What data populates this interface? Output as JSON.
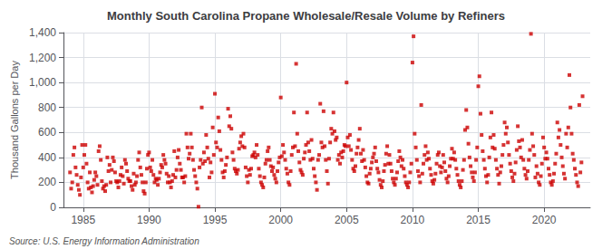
{
  "chart_data": {
    "type": "scatter",
    "title": "Monthly South Carolina Propane Wholesale/Resale Volume by Refiners",
    "ylabel": "Thousand Gallons per Day",
    "annotations": [
      "Source: U.S. Energy Information Administration"
    ],
    "color": "#cc0000",
    "marker": "square",
    "grid": true,
    "xlim": [
      1983.5,
      2023.5
    ],
    "xticks": [
      1985,
      1990,
      1995,
      2000,
      2005,
      2010,
      2015,
      2020
    ],
    "ylim": [
      0,
      1400
    ],
    "yticks": [
      0,
      200,
      400,
      600,
      800,
      {
        "value": 1000,
        "label": "1,000"
      },
      {
        "value": 1200,
        "label": "1,200"
      },
      {
        "value": 1400,
        "label": "1,400"
      }
    ],
    "x": [
      1984.0,
      1984.083,
      1984.167,
      1984.25,
      1984.333,
      1984.417,
      1984.5,
      1984.583,
      1984.667,
      1984.75,
      1984.833,
      1984.917,
      1985.0,
      1985.083,
      1985.167,
      1985.25,
      1985.333,
      1985.417,
      1985.5,
      1985.583,
      1985.667,
      1985.75,
      1985.833,
      1985.917,
      1986.0,
      1986.083,
      1986.167,
      1986.25,
      1986.333,
      1986.417,
      1986.5,
      1986.583,
      1986.667,
      1986.75,
      1986.833,
      1986.917,
      1987.0,
      1987.083,
      1987.167,
      1987.25,
      1987.333,
      1987.417,
      1987.5,
      1987.583,
      1987.667,
      1987.75,
      1987.833,
      1987.917,
      1988.0,
      1988.083,
      1988.167,
      1988.25,
      1988.333,
      1988.417,
      1988.5,
      1988.583,
      1988.667,
      1988.75,
      1988.833,
      1988.917,
      1989.0,
      1989.083,
      1989.167,
      1989.25,
      1989.333,
      1989.417,
      1989.5,
      1989.583,
      1989.667,
      1989.75,
      1989.833,
      1989.917,
      1990.0,
      1990.083,
      1990.167,
      1990.25,
      1990.333,
      1990.417,
      1990.5,
      1990.583,
      1990.667,
      1990.75,
      1990.833,
      1990.917,
      1991.0,
      1991.083,
      1991.167,
      1991.25,
      1991.333,
      1991.417,
      1991.5,
      1991.583,
      1991.667,
      1991.75,
      1991.833,
      1991.917,
      1992.0,
      1992.083,
      1992.167,
      1992.25,
      1992.333,
      1992.417,
      1992.5,
      1992.583,
      1992.667,
      1992.75,
      1992.833,
      1992.917,
      1993.0,
      1993.083,
      1993.167,
      1993.25,
      1993.333,
      1993.417,
      1993.5,
      1993.583,
      1993.667,
      1993.75,
      1993.833,
      1993.917,
      1994.0,
      1994.083,
      1994.167,
      1994.25,
      1994.333,
      1994.417,
      1994.5,
      1994.583,
      1994.667,
      1994.75,
      1994.833,
      1994.917,
      1995.0,
      1995.083,
      1995.167,
      1995.25,
      1995.333,
      1995.417,
      1995.5,
      1995.583,
      1995.667,
      1995.75,
      1995.833,
      1995.917,
      1996.0,
      1996.083,
      1996.167,
      1996.25,
      1996.333,
      1996.417,
      1996.5,
      1996.583,
      1996.667,
      1996.75,
      1996.833,
      1996.917,
      1997.0,
      1997.083,
      1997.167,
      1997.25,
      1997.333,
      1997.417,
      1997.5,
      1997.583,
      1997.667,
      1997.75,
      1997.833,
      1997.917,
      1998.0,
      1998.083,
      1998.167,
      1998.25,
      1998.333,
      1998.417,
      1998.5,
      1998.583,
      1998.667,
      1998.75,
      1998.833,
      1998.917,
      1999.0,
      1999.083,
      1999.167,
      1999.25,
      1999.333,
      1999.417,
      1999.5,
      1999.583,
      1999.667,
      1999.75,
      1999.833,
      1999.917,
      2000.0,
      2000.083,
      2000.167,
      2000.25,
      2000.333,
      2000.417,
      2000.5,
      2000.583,
      2000.667,
      2000.75,
      2000.833,
      2000.917,
      2001.0,
      2001.083,
      2001.167,
      2001.25,
      2001.333,
      2001.417,
      2001.5,
      2001.583,
      2001.667,
      2001.75,
      2001.833,
      2001.917,
      2002.0,
      2002.083,
      2002.167,
      2002.25,
      2002.333,
      2002.417,
      2002.5,
      2002.583,
      2002.667,
      2002.75,
      2002.833,
      2002.917,
      2003.0,
      2003.083,
      2003.167,
      2003.25,
      2003.333,
      2003.417,
      2003.5,
      2003.583,
      2003.667,
      2003.75,
      2003.833,
      2003.917,
      2004.0,
      2004.083,
      2004.167,
      2004.25,
      2004.333,
      2004.417,
      2004.5,
      2004.583,
      2004.667,
      2004.75,
      2004.833,
      2004.917,
      2005.0,
      2005.083,
      2005.167,
      2005.25,
      2005.333,
      2005.417,
      2005.5,
      2005.583,
      2005.667,
      2005.75,
      2005.833,
      2005.917,
      2006.0,
      2006.083,
      2006.167,
      2006.25,
      2006.333,
      2006.417,
      2006.5,
      2006.583,
      2006.667,
      2006.75,
      2006.833,
      2006.917,
      2007.0,
      2007.083,
      2007.167,
      2007.25,
      2007.333,
      2007.417,
      2007.5,
      2007.583,
      2007.667,
      2007.75,
      2007.833,
      2007.917,
      2008.0,
      2008.083,
      2008.167,
      2008.25,
      2008.333,
      2008.417,
      2008.5,
      2008.583,
      2008.667,
      2008.75,
      2008.833,
      2008.917,
      2009.0,
      2009.083,
      2009.167,
      2009.25,
      2009.333,
      2009.417,
      2009.5,
      2009.583,
      2009.667,
      2009.75,
      2009.833,
      2009.917,
      2010.0,
      2010.083,
      2010.167,
      2010.25,
      2010.333,
      2010.417,
      2010.5,
      2010.583,
      2010.667,
      2010.75,
      2010.833,
      2010.917,
      2011.0,
      2011.083,
      2011.167,
      2011.25,
      2011.333,
      2011.417,
      2011.5,
      2011.583,
      2011.667,
      2011.75,
      2011.833,
      2011.917,
      2012.0,
      2012.083,
      2012.167,
      2012.25,
      2012.333,
      2012.417,
      2012.5,
      2012.583,
      2012.667,
      2012.75,
      2012.833,
      2012.917,
      2013.0,
      2013.083,
      2013.167,
      2013.25,
      2013.333,
      2013.417,
      2013.5,
      2013.583,
      2013.667,
      2013.75,
      2013.833,
      2013.917,
      2014.0,
      2014.083,
      2014.167,
      2014.25,
      2014.333,
      2014.417,
      2014.5,
      2014.583,
      2014.667,
      2014.75,
      2014.833,
      2014.917,
      2015.0,
      2015.083,
      2015.167,
      2015.25,
      2015.333,
      2015.417,
      2015.5,
      2015.583,
      2015.667,
      2015.75,
      2015.833,
      2015.917,
      2016.0,
      2016.083,
      2016.167,
      2016.25,
      2016.333,
      2016.417,
      2016.5,
      2016.583,
      2016.667,
      2016.75,
      2016.833,
      2016.917,
      2017.0,
      2017.083,
      2017.167,
      2017.25,
      2017.333,
      2017.417,
      2017.5,
      2017.583,
      2017.667,
      2017.75,
      2017.833,
      2017.917,
      2018.0,
      2018.083,
      2018.167,
      2018.25,
      2018.333,
      2018.417,
      2018.5,
      2018.583,
      2018.667,
      2018.75,
      2018.833,
      2018.917,
      2019.0,
      2019.083,
      2019.167,
      2019.25,
      2019.333,
      2019.417,
      2019.5,
      2019.583,
      2019.667,
      2019.75,
      2019.833,
      2019.917,
      2020.0,
      2020.083,
      2020.167,
      2020.25,
      2020.333,
      2020.417,
      2020.5,
      2020.583,
      2020.667,
      2020.75,
      2020.833,
      2020.917,
      2021.0,
      2021.083,
      2021.167,
      2021.25,
      2021.333,
      2021.417,
      2021.5,
      2021.583,
      2021.667,
      2021.75,
      2021.833,
      2021.917,
      2022.0,
      2022.083,
      2022.167,
      2022.25,
      2022.333,
      2022.417,
      2022.5,
      2022.583,
      2022.667,
      2022.75,
      2022.833,
      2022.917
    ],
    "values": [
      280,
      150,
      200,
      420,
      480,
      320,
      260,
      180,
      140,
      100,
      240,
      500,
      320,
      420,
      500,
      350,
      200,
      150,
      280,
      160,
      120,
      170,
      220,
      280,
      250,
      180,
      450,
      490,
      380,
      210,
      150,
      170,
      130,
      180,
      400,
      290,
      340,
      200,
      300,
      400,
      370,
      280,
      210,
      200,
      160,
      210,
      260,
      320,
      250,
      190,
      380,
      350,
      290,
      230,
      210,
      210,
      170,
      140,
      270,
      180,
      200,
      250,
      380,
      440,
      320,
      260,
      200,
      130,
      110,
      200,
      310,
      420,
      440,
      320,
      290,
      380,
      260,
      200,
      230,
      220,
      180,
      230,
      280,
      340,
      320,
      420,
      380,
      350,
      270,
      200,
      250,
      200,
      160,
      210,
      260,
      450,
      240,
      300,
      400,
      460,
      350,
      300,
      240,
      240,
      200,
      250,
      590,
      480,
      390,
      430,
      590,
      480,
      380,
      300,
      250,
      200,
      150,
      5,
      320,
      380,
      800,
      350,
      440,
      370,
      580,
      480,
      390,
      240,
      360,
      280,
      640,
      420,
      910,
      520,
      480,
      720,
      610,
      460,
      380,
      280,
      240,
      290,
      340,
      400,
      790,
      650,
      730,
      630,
      440,
      380,
      310,
      290,
      270,
      300,
      470,
      520,
      570,
      490,
      590,
      480,
      320,
      250,
      200,
      300,
      260,
      310,
      410,
      420,
      440,
      400,
      500,
      420,
      310,
      250,
      200,
      180,
      160,
      240,
      350,
      380,
      450,
      480,
      380,
      330,
      290,
      320,
      260,
      230,
      200,
      290,
      360,
      400,
      880,
      410,
      500,
      440,
      380,
      310,
      270,
      200,
      180,
      290,
      420,
      480,
      760,
      490,
      1150,
      590,
      450,
      360,
      300,
      280,
      260,
      390,
      440,
      500,
      760,
      520,
      450,
      380,
      540,
      390,
      310,
      250,
      200,
      140,
      380,
      420,
      830,
      520,
      480,
      770,
      490,
      380,
      290,
      190,
      390,
      520,
      630,
      590,
      760,
      610,
      540,
      560,
      380,
      420,
      350,
      440,
      400,
      450,
      500,
      490,
      1000,
      560,
      490,
      580,
      460,
      380,
      310,
      290,
      330,
      430,
      480,
      540,
      630,
      430,
      370,
      460,
      380,
      320,
      250,
      200,
      190,
      270,
      310,
      360,
      400,
      430,
      480,
      370,
      310,
      280,
      220,
      180,
      160,
      210,
      290,
      340,
      430,
      490,
      350,
      420,
      350,
      290,
      230,
      200,
      180,
      230,
      280,
      370,
      450,
      400,
      330,
      380,
      310,
      250,
      200,
      180,
      160,
      200,
      280,
      350,
      1160,
      1370,
      590,
      480,
      380,
      290,
      250,
      200,
      820,
      270,
      350,
      420,
      490,
      380,
      440,
      390,
      310,
      260,
      210,
      190,
      220,
      270,
      350,
      420,
      440,
      330,
      280,
      320,
      420,
      360,
      290,
      230,
      200,
      250,
      330,
      390,
      470,
      390,
      440,
      380,
      310,
      260,
      210,
      180,
      160,
      210,
      300,
      380,
      620,
      780,
      640,
      510,
      400,
      330,
      280,
      240,
      210,
      280,
      380,
      480,
      970,
      1050,
      750,
      580,
      450,
      380,
      310,
      250,
      200,
      260,
      400,
      560,
      760,
      480,
      580,
      470,
      380,
      310,
      260,
      190,
      280,
      330,
      420,
      500,
      680,
      590,
      640,
      520,
      420,
      350,
      290,
      240,
      210,
      270,
      360,
      460,
      650,
      530,
      480,
      400,
      540,
      380,
      310,
      260,
      230,
      290,
      380,
      460,
      1390,
      590,
      490,
      420,
      240,
      330,
      270,
      200,
      180,
      250,
      350,
      560,
      480,
      390,
      440,
      390,
      310,
      260,
      200,
      180,
      210,
      270,
      350,
      430,
      680,
      560,
      620,
      500,
      400,
      330,
      270,
      230,
      590,
      480,
      640,
      1060,
      800,
      590,
      430,
      380,
      310,
      260,
      200,
      170,
      820,
      280,
      360,
      890
    ]
  }
}
